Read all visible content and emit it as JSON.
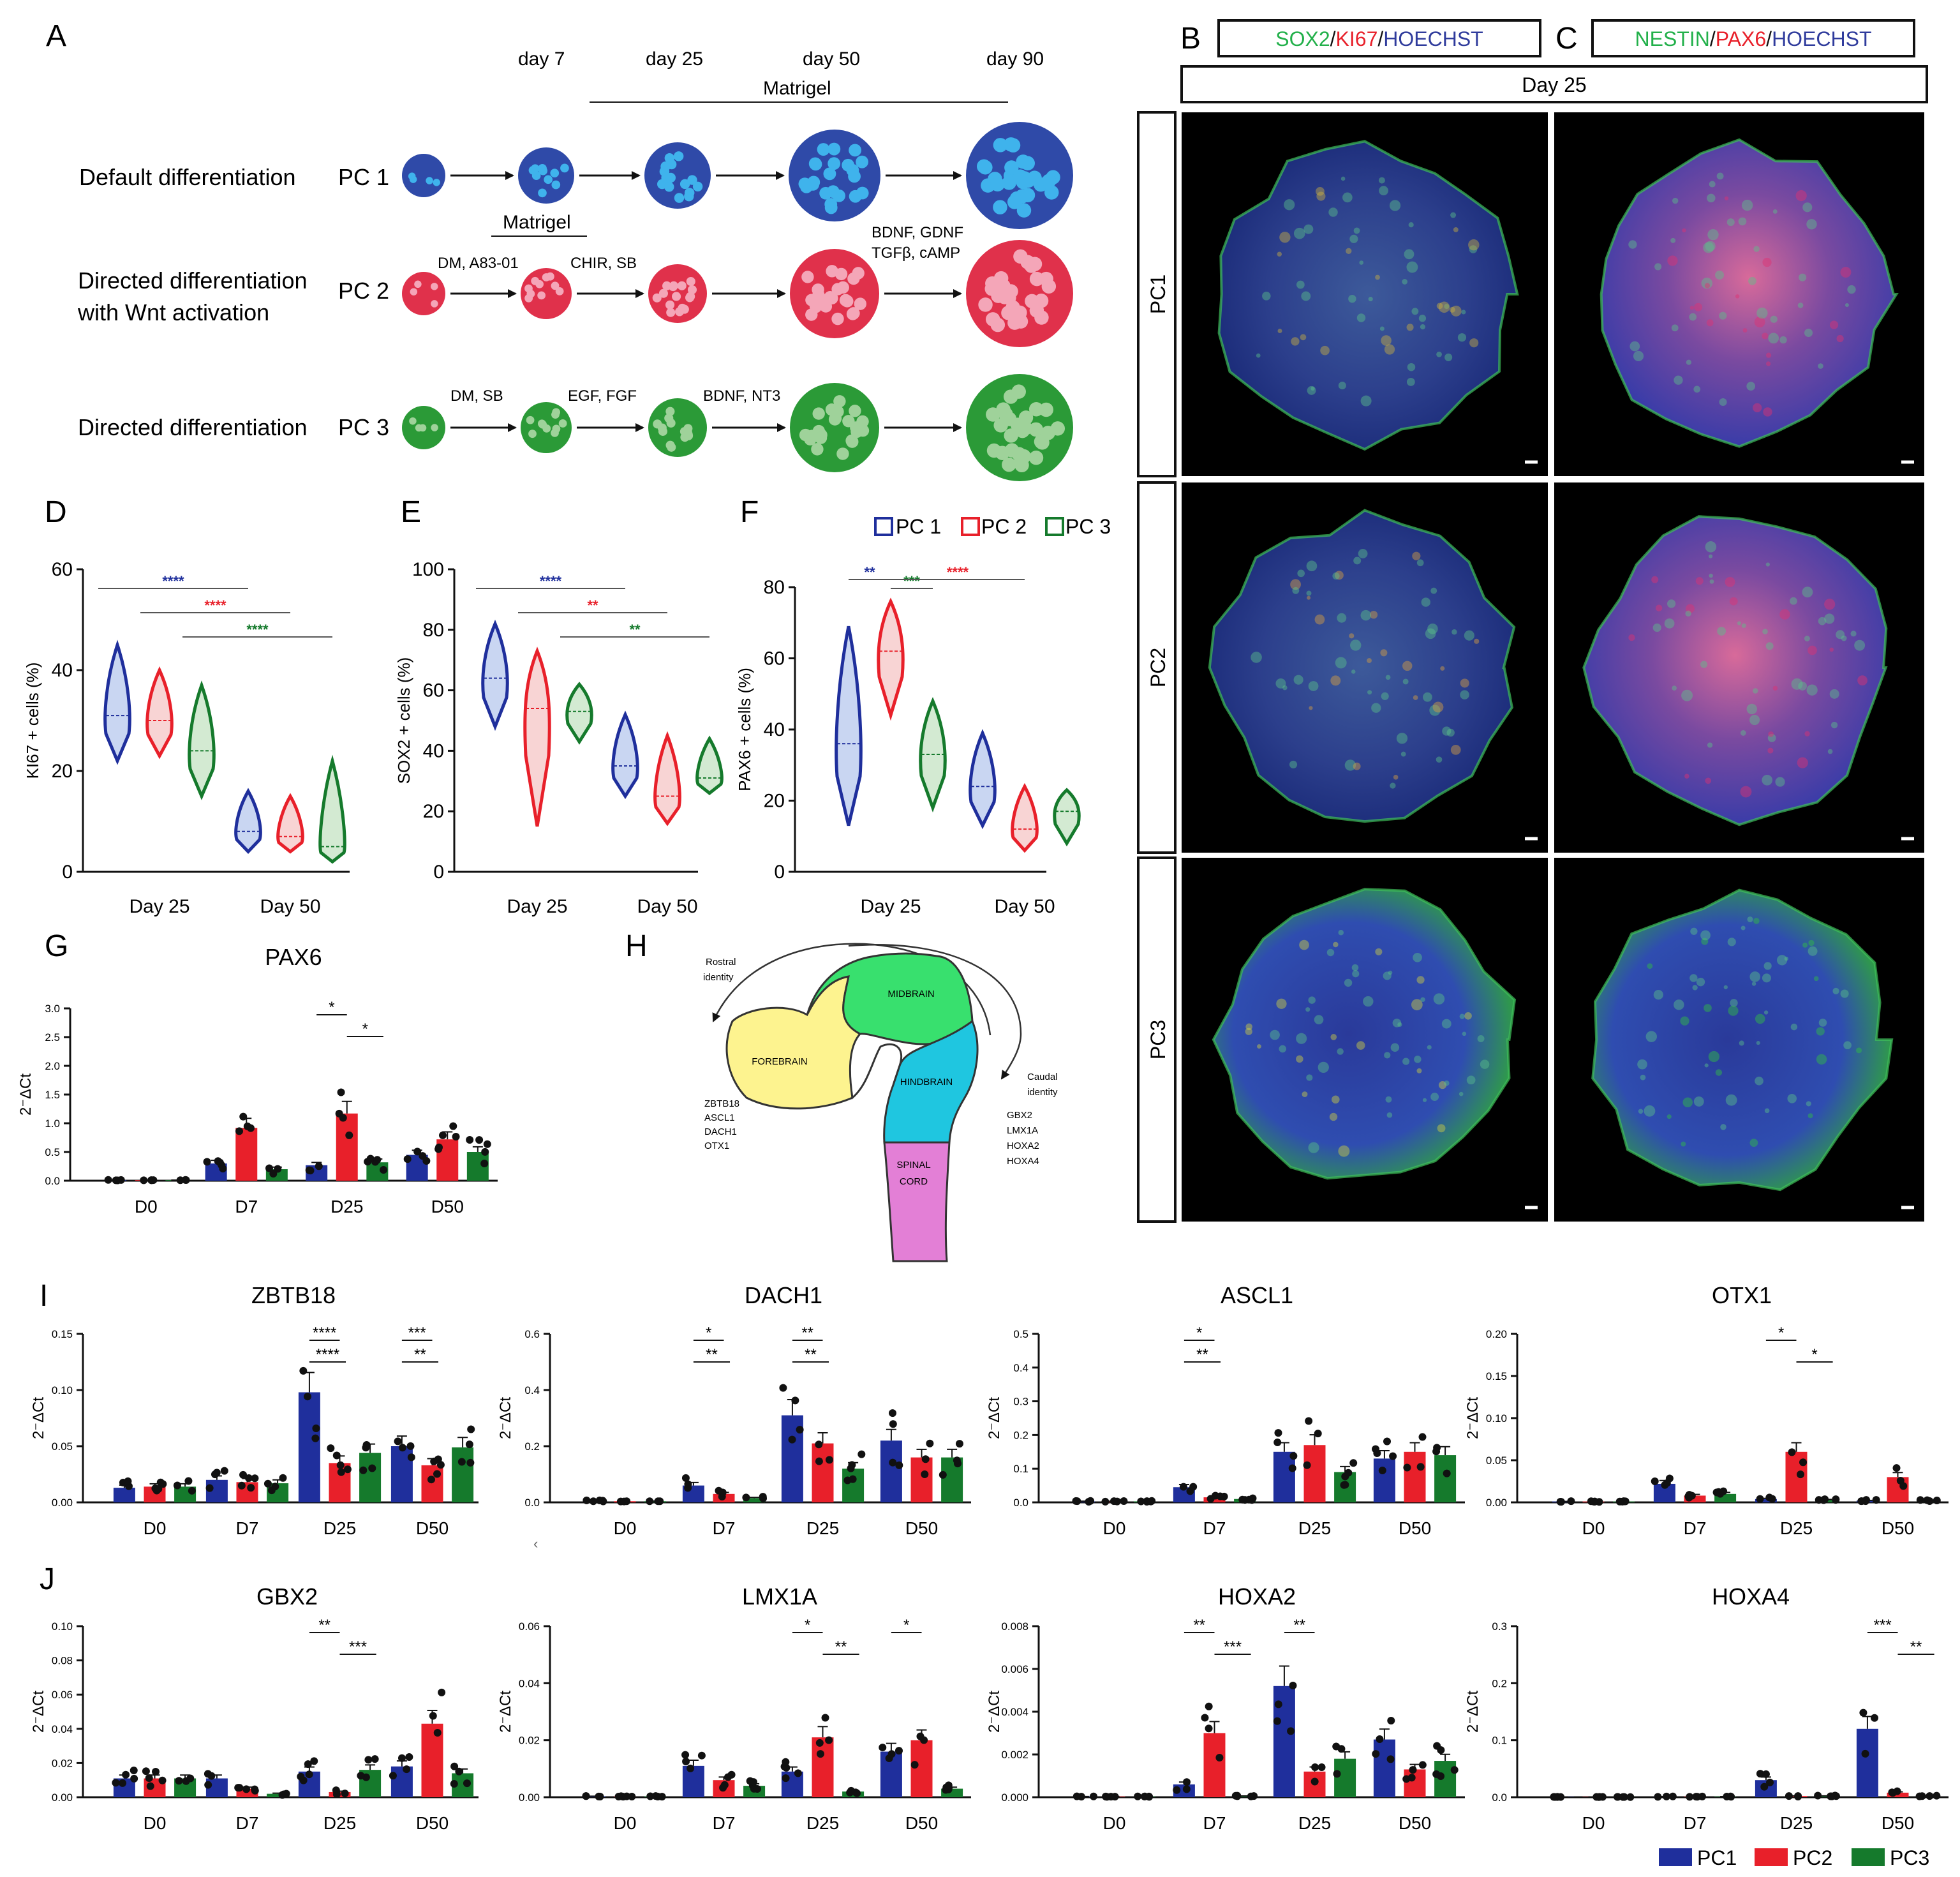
{
  "colors": {
    "pc1": "#1f2f9c",
    "pc2": "#e8202a",
    "pc3": "#157a2c",
    "pc1_circle": "#2f4aa8",
    "pc1_dot": "#3fb3ec",
    "pc2_circle": "#e0314b",
    "pc2_dot": "#f4a6b8",
    "pc3_circle": "#2b9a37",
    "pc3_dot": "#9fd29a",
    "pc1_fill": "#c9d6f2",
    "pc2_fill": "#f8d4d4",
    "pc3_fill": "#d3ead2",
    "forebrain": "#fdf38f",
    "midbrain": "#38e06e",
    "hindbrain": "#1fc6e0",
    "spinal": "#e37fd6"
  },
  "panel_letters": {
    "A": "A",
    "B": "B",
    "C": "C",
    "D": "D",
    "E": "E",
    "F": "F",
    "G": "G",
    "H": "H",
    "I": "I",
    "J": "J"
  },
  "panelA": {
    "days": [
      "day 7",
      "day 25",
      "day 50",
      "day 90"
    ],
    "matrigel_top": "Matrigel",
    "matrigel_mid": "Matrigel",
    "rows": [
      {
        "label": "Default differentiation",
        "pc": "PC 1",
        "treatments": []
      },
      {
        "label_line1": "Directed differentiation",
        "label_line2": "with Wnt activation",
        "pc": "PC 2",
        "treatments": [
          "DM, A83-01",
          "CHIR, SB",
          "BDNF, GDNF",
          "TGFβ, cAMP"
        ]
      },
      {
        "label": "Directed differentiation",
        "pc": "PC 3",
        "treatments": [
          "DM, SB",
          "EGF, FGF",
          "BDNF, NT3"
        ]
      }
    ]
  },
  "panelBC": {
    "B_header": {
      "p1": "SOX2",
      "s1": "/",
      "p2": "KI67",
      "s2": "/",
      "p3": "HOECHST"
    },
    "C_header": {
      "p1": "NESTIN",
      "s1": "/",
      "p2": "PAX6",
      "s2": "/",
      "p3": "HOECHST"
    },
    "day_label": "Day 25",
    "row_labels": [
      "PC1",
      "PC2",
      "PC3"
    ]
  },
  "legend_DEF": [
    "PC 1",
    "PC 2",
    "PC 3"
  ],
  "chart_data": [
    {
      "id": "D",
      "type": "violin",
      "ylabel": "KI67 + cells (%)",
      "ylim": [
        0,
        60
      ],
      "yticks": [
        "0",
        "20",
        "40",
        "60"
      ],
      "groups": [
        "Day 25",
        "Day 50"
      ],
      "series": [
        "PC1",
        "PC2",
        "PC3"
      ],
      "ranges": [
        [
          22,
          45
        ],
        [
          23,
          40
        ],
        [
          15,
          37
        ],
        [
          4,
          16
        ],
        [
          4,
          15
        ],
        [
          2,
          22
        ]
      ],
      "medians": [
        31,
        30,
        24,
        8,
        7,
        5
      ],
      "sig": [
        {
          "text": "****",
          "color": "pc1"
        },
        {
          "text": "****",
          "color": "pc2"
        },
        {
          "text": "****",
          "color": "pc3"
        }
      ]
    },
    {
      "id": "E",
      "type": "violin",
      "ylabel": "SOX2 + cells (%)",
      "ylim": [
        0,
        100
      ],
      "yticks": [
        "0",
        "20",
        "40",
        "60",
        "80",
        "100"
      ],
      "groups": [
        "Day 25",
        "Day 50"
      ],
      "series": [
        "PC1",
        "PC2",
        "PC3"
      ],
      "ranges": [
        [
          48,
          82
        ],
        [
          15,
          73
        ],
        [
          43,
          62
        ],
        [
          25,
          52
        ],
        [
          16,
          45
        ],
        [
          26,
          44
        ]
      ],
      "medians": [
        64,
        54,
        53,
        35,
        25,
        31
      ],
      "sig": [
        {
          "text": "****",
          "color": "pc1"
        },
        {
          "text": "**",
          "color": "pc2"
        },
        {
          "text": "**",
          "color": "pc3"
        }
      ]
    },
    {
      "id": "F",
      "type": "violin",
      "ylabel": "PAX6 + cells (%)",
      "ylim": [
        0,
        80
      ],
      "yticks": [
        "0",
        "20",
        "40",
        "60",
        "80"
      ],
      "groups": [
        "Day 25",
        "Day 50"
      ],
      "series": [
        "PC1",
        "PC2",
        "PC3"
      ],
      "ranges": [
        [
          13,
          69
        ],
        [
          44,
          76
        ],
        [
          18,
          48
        ],
        [
          13,
          39
        ],
        [
          6,
          24
        ],
        [
          8,
          23
        ]
      ],
      "medians": [
        36,
        62,
        33,
        24,
        12,
        17
      ],
      "sig": [
        {
          "text": "**",
          "color": "pc1"
        },
        {
          "text": "***",
          "color": "pc3"
        },
        {
          "text": "****",
          "color": "pc2"
        }
      ]
    },
    {
      "id": "G",
      "type": "bar",
      "title": "PAX6",
      "ylabel": "2⁻ΔCt",
      "ylim": [
        0,
        3
      ],
      "yticks": [
        "0.0",
        "0.5",
        "1.0",
        "1.5",
        "2.0",
        "2.5",
        "3.0"
      ],
      "categories": [
        "D0",
        "D7",
        "D25",
        "D50"
      ],
      "series": [
        {
          "name": "PC1",
          "values": [
            0.01,
            0.3,
            0.27,
            0.45
          ]
        },
        {
          "name": "PC2",
          "values": [
            0.01,
            0.92,
            1.17,
            0.72
          ]
        },
        {
          "name": "PC3",
          "values": [
            0.01,
            0.2,
            0.32,
            0.5
          ]
        }
      ],
      "sig": [
        {
          "text": "*"
        },
        {
          "text": "*"
        }
      ]
    },
    {
      "id": "I1",
      "type": "bar",
      "title": "ZBTB18",
      "ylabel": "2⁻ΔCt",
      "ylim": [
        0,
        0.15
      ],
      "yticks": [
        "0.00",
        "0.05",
        "0.10",
        "0.15"
      ],
      "categories": [
        "D0",
        "D7",
        "D25",
        "D50"
      ],
      "series": [
        {
          "name": "PC1",
          "values": [
            0.013,
            0.02,
            0.098,
            0.05
          ]
        },
        {
          "name": "PC2",
          "values": [
            0.014,
            0.018,
            0.035,
            0.033
          ]
        },
        {
          "name": "PC3",
          "values": [
            0.014,
            0.017,
            0.044,
            0.049
          ]
        }
      ],
      "sig": [
        {
          "text": "****"
        },
        {
          "text": "****"
        },
        {
          "text": "***"
        },
        {
          "text": "**"
        }
      ]
    },
    {
      "id": "I2",
      "type": "bar",
      "title": "DACH1",
      "ylabel": "2⁻ΔCt",
      "ylim": [
        0,
        0.6
      ],
      "yticks": [
        "0.0",
        "0.2",
        "0.4",
        "0.6"
      ],
      "categories": [
        "D0",
        "D7",
        "D25",
        "D50"
      ],
      "series": [
        {
          "name": "PC1",
          "values": [
            0.005,
            0.06,
            0.31,
            0.22
          ]
        },
        {
          "name": "PC2",
          "values": [
            0.004,
            0.03,
            0.21,
            0.16
          ]
        },
        {
          "name": "PC3",
          "values": [
            0.004,
            0.015,
            0.12,
            0.16
          ]
        }
      ],
      "sig": [
        {
          "text": "*"
        },
        {
          "text": "**"
        },
        {
          "text": "**"
        },
        {
          "text": "**"
        }
      ]
    },
    {
      "id": "I3",
      "type": "bar",
      "title": "ASCL1",
      "ylabel": "2⁻ΔCt",
      "ylim": [
        0,
        0.5
      ],
      "yticks": [
        "0.0",
        "0.1",
        "0.2",
        "0.3",
        "0.4",
        "0.5"
      ],
      "categories": [
        "D0",
        "D7",
        "D25",
        "D50"
      ],
      "series": [
        {
          "name": "PC1",
          "values": [
            0.003,
            0.045,
            0.15,
            0.13
          ]
        },
        {
          "name": "PC2",
          "values": [
            0.003,
            0.015,
            0.17,
            0.15
          ]
        },
        {
          "name": "PC3",
          "values": [
            0.003,
            0.01,
            0.09,
            0.14
          ]
        }
      ],
      "sig": [
        {
          "text": "*"
        },
        {
          "text": "**"
        }
      ]
    },
    {
      "id": "I4",
      "type": "bar",
      "title": "OTX1",
      "ylabel": "2⁻ΔCt",
      "ylim": [
        0,
        0.2
      ],
      "yticks": [
        "0.00",
        "0.05",
        "0.10",
        "0.15",
        "0.20"
      ],
      "categories": [
        "D0",
        "D7",
        "D25",
        "D50"
      ],
      "series": [
        {
          "name": "PC1",
          "values": [
            0.001,
            0.022,
            0.004,
            0.002
          ]
        },
        {
          "name": "PC2",
          "values": [
            0.001,
            0.008,
            0.06,
            0.03
          ]
        },
        {
          "name": "PC3",
          "values": [
            0.001,
            0.01,
            0.003,
            0.002
          ]
        }
      ],
      "sig": [
        {
          "text": "*"
        },
        {
          "text": "*"
        }
      ]
    },
    {
      "id": "J1",
      "type": "bar",
      "title": "GBX2",
      "ylabel": "2⁻ΔCt",
      "ylim": [
        0,
        0.1
      ],
      "yticks": [
        "0.00",
        "0.02",
        "0.04",
        "0.06",
        "0.08",
        "0.10"
      ],
      "categories": [
        "D0",
        "D7",
        "D25",
        "D50"
      ],
      "series": [
        {
          "name": "PC1",
          "values": [
            0.011,
            0.011,
            0.015,
            0.018
          ]
        },
        {
          "name": "PC2",
          "values": [
            0.011,
            0.005,
            0.003,
            0.043
          ]
        },
        {
          "name": "PC3",
          "values": [
            0.011,
            0.002,
            0.016,
            0.014
          ]
        }
      ],
      "sig": [
        {
          "text": "**"
        },
        {
          "text": "***"
        }
      ]
    },
    {
      "id": "J2",
      "type": "bar",
      "title": "LMX1A",
      "ylabel": "2⁻ΔCt",
      "ylim": [
        0,
        0.06
      ],
      "yticks": [
        "0.00",
        "0.02",
        "0.04",
        "0.06"
      ],
      "categories": [
        "D0",
        "D7",
        "D25",
        "D50"
      ],
      "series": [
        {
          "name": "PC1",
          "values": [
            0.0003,
            0.011,
            0.009,
            0.016
          ]
        },
        {
          "name": "PC2",
          "values": [
            0.0003,
            0.006,
            0.021,
            0.02
          ]
        },
        {
          "name": "PC3",
          "values": [
            0.0003,
            0.004,
            0.002,
            0.003
          ]
        }
      ],
      "sig": [
        {
          "text": "*"
        },
        {
          "text": "**"
        },
        {
          "text": "*"
        }
      ]
    },
    {
      "id": "J3",
      "type": "bar",
      "title": "HOXA2",
      "ylabel": "2⁻ΔCt",
      "ylim": [
        0,
        0.008
      ],
      "yticks": [
        "0.000",
        "0.002",
        "0.004",
        "0.006",
        "0.008"
      ],
      "categories": [
        "D0",
        "D7",
        "D25",
        "D50"
      ],
      "series": [
        {
          "name": "PC1",
          "values": [
            3e-05,
            0.0006,
            0.0052,
            0.0027
          ]
        },
        {
          "name": "PC2",
          "values": [
            3e-05,
            0.003,
            0.0012,
            0.0013
          ]
        },
        {
          "name": "PC3",
          "values": [
            3e-05,
            5e-05,
            0.0018,
            0.0017
          ]
        }
      ],
      "sig": [
        {
          "text": "**"
        },
        {
          "text": "***"
        },
        {
          "text": "**"
        }
      ]
    },
    {
      "id": "J4",
      "type": "bar",
      "title": "HOXA4",
      "ylabel": "2⁻ΔCt",
      "ylim": [
        0,
        0.3
      ],
      "yticks": [
        "0.0",
        "0.1",
        "0.2",
        "0.3"
      ],
      "categories": [
        "D0",
        "D7",
        "D25",
        "D50"
      ],
      "series": [
        {
          "name": "PC1",
          "values": [
            0.0005,
            0.001,
            0.03,
            0.12
          ]
        },
        {
          "name": "PC2",
          "values": [
            0.0005,
            0.001,
            0.002,
            0.008
          ]
        },
        {
          "name": "PC3",
          "values": [
            0.0005,
            0.001,
            0.002,
            0.002
          ]
        }
      ],
      "sig": [
        {
          "text": "***"
        },
        {
          "text": "**"
        }
      ]
    }
  ],
  "panelH": {
    "forebrain": "FOREBRAIN",
    "midbrain": "MIDBRAIN",
    "hindbrain": "HINDBRAIN",
    "spinal_1": "SPINAL",
    "spinal_2": "CORD",
    "rostral_1": "Rostral",
    "rostral_2": "identity",
    "caudal_1": "Caudal",
    "caudal_2": "identity",
    "rostral_genes": [
      "ZBTB18",
      "ASCL1",
      "DACH1",
      "OTX1"
    ],
    "caudal_genes": [
      "GBX2",
      "LMX1A",
      "HOXA2",
      "HOXA4"
    ]
  },
  "bottom_legend": [
    "PC1",
    "PC2",
    "PC3"
  ],
  "stray_mark": "‹"
}
